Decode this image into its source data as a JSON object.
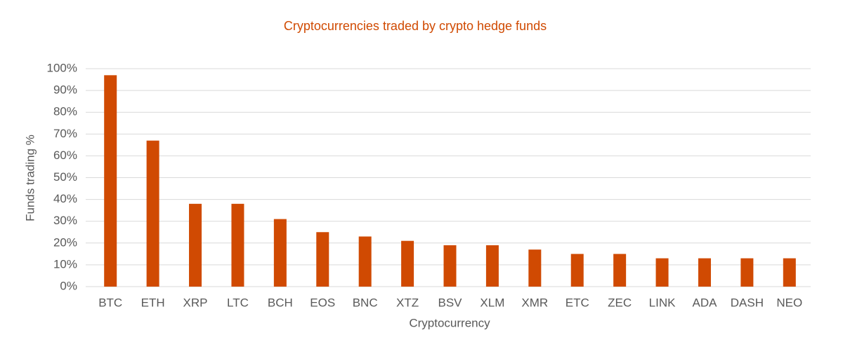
{
  "chart_data": {
    "type": "bar",
    "title": "Cryptocurrencies traded by crypto hedge funds",
    "x_label": "Cryptocurrency",
    "y_label": "Funds trading %",
    "categories": [
      "BTC",
      "ETH",
      "XRP",
      "LTC",
      "BCH",
      "EOS",
      "BNC",
      "XTZ",
      "BSV",
      "XLM",
      "XMR",
      "ETC",
      "ZEC",
      "LINK",
      "ADA",
      "DASH",
      "NEO"
    ],
    "values": [
      97,
      67,
      38,
      38,
      31,
      25,
      23,
      21,
      19,
      19,
      17,
      15,
      15,
      13,
      13,
      13,
      13
    ],
    "color": "#d04a02",
    "ylim": [
      0,
      100
    ],
    "yticks": [
      {
        "value": 0,
        "label": "0%"
      },
      {
        "value": 10,
        "label": "10%"
      },
      {
        "value": 20,
        "label": "20%"
      },
      {
        "value": 30,
        "label": "30%"
      },
      {
        "value": 40,
        "label": "40%"
      },
      {
        "value": 50,
        "label": "50%"
      },
      {
        "value": 60,
        "label": "60%"
      },
      {
        "value": 70,
        "label": "70%"
      },
      {
        "value": 80,
        "label": "80%"
      },
      {
        "value": 90,
        "label": "90%"
      },
      {
        "value": 100,
        "label": "100%"
      }
    ],
    "grid": true
  }
}
